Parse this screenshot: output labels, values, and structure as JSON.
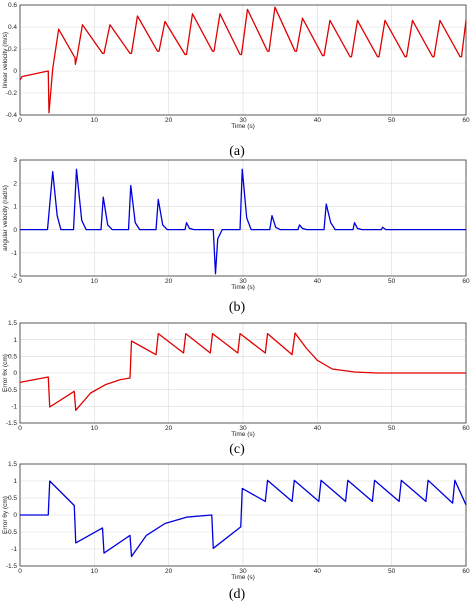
{
  "chart_data": [
    {
      "type": "line",
      "caption": "(a)",
      "xlabel": "Time (s)",
      "ylabel": "linear velocity (m/s)",
      "xlim": [
        0,
        60
      ],
      "ylim": [
        -0.4,
        0.6
      ],
      "xticks": [
        "0",
        "10",
        "20",
        "30",
        "40",
        "50",
        "60"
      ],
      "yticks": [
        "-0.4",
        "-0.2",
        "0",
        "0.2",
        "0.4",
        "0.6"
      ],
      "grid": true,
      "color": "#e00000",
      "series": [
        {
          "x": [
            0,
            0.3,
            3.8,
            3.9,
            4.4,
            5.2,
            7.4,
            7.45,
            7.7,
            8.4,
            11.1,
            11.3,
            12.1,
            14.8,
            15.0,
            15.8,
            18.5,
            18.7,
            19.5,
            22.2,
            22.4,
            23.2,
            25.9,
            26.1,
            26.9,
            29.6,
            29.8,
            30.6,
            33.3,
            33.5,
            34.3,
            37.0,
            37.2,
            38.0,
            40.7,
            40.9,
            41.7,
            44.4,
            44.6,
            45.4,
            48.1,
            48.3,
            49.1,
            51.8,
            52.0,
            52.8,
            55.5,
            55.7,
            56.5,
            59.2,
            59.4,
            60.2
          ],
          "y": [
            -0.08,
            -0.05,
            0.0,
            -0.38,
            0.02,
            0.38,
            0.12,
            0.06,
            0.14,
            0.42,
            0.16,
            0.16,
            0.42,
            0.16,
            0.16,
            0.5,
            0.18,
            0.18,
            0.45,
            0.15,
            0.15,
            0.52,
            0.18,
            0.18,
            0.52,
            0.15,
            0.15,
            0.56,
            0.18,
            0.18,
            0.58,
            0.18,
            0.18,
            0.48,
            0.14,
            0.14,
            0.46,
            0.13,
            0.13,
            0.46,
            0.13,
            0.13,
            0.46,
            0.13,
            0.13,
            0.46,
            0.13,
            0.13,
            0.46,
            0.13,
            0.13,
            0.46
          ]
        }
      ]
    },
    {
      "type": "line",
      "caption": "(b)",
      "xlabel": "Time (s)",
      "ylabel": "angular velocity (rad/s)",
      "xlim": [
        0,
        60
      ],
      "ylim": [
        -2,
        3
      ],
      "xticks": [
        "0",
        "10",
        "20",
        "30",
        "40",
        "50",
        "60"
      ],
      "yticks": [
        "-2",
        "-1",
        "0",
        "1",
        "2",
        "3"
      ],
      "grid": true,
      "color": "#0000dd",
      "series": [
        {
          "x": [
            0,
            3.7,
            4.4,
            5.0,
            5.5,
            7.2,
            7.6,
            8.3,
            8.9,
            10.9,
            11.2,
            11.8,
            12.4,
            14.6,
            14.9,
            15.5,
            16.1,
            18.3,
            18.6,
            19.2,
            19.8,
            22.2,
            22.4,
            22.8,
            23.4,
            26.0,
            26.3,
            26.6,
            27.2,
            29.6,
            29.9,
            30.5,
            31.1,
            33.6,
            33.9,
            34.4,
            35.0,
            37.4,
            37.6,
            38.0,
            38.6,
            40.9,
            41.2,
            41.8,
            42.4,
            44.8,
            45.0,
            45.4,
            46.0,
            48.6,
            48.8,
            49.2,
            60.2
          ],
          "y": [
            0,
            0,
            2.5,
            0.6,
            0,
            0,
            2.6,
            0.4,
            0,
            0,
            1.4,
            0.2,
            0,
            0,
            1.9,
            0.3,
            0,
            0,
            1.3,
            0.2,
            0,
            0,
            0.3,
            0.05,
            0,
            0,
            -1.9,
            -0.4,
            0,
            0,
            2.6,
            0.5,
            0,
            0,
            0.6,
            0.1,
            0,
            0,
            0.2,
            0.05,
            0,
            0,
            1.1,
            0.3,
            0,
            0,
            0.3,
            0.05,
            0,
            0,
            0.1,
            0,
            0
          ]
        }
      ]
    },
    {
      "type": "line",
      "caption": "(c)",
      "xlabel": "Time (s)",
      "ylabel": "Error θx (cm)",
      "xlim": [
        0,
        60
      ],
      "ylim": [
        -1.5,
        1.5
      ],
      "xticks": [
        "0",
        "10",
        "20",
        "30",
        "40",
        "50",
        "60"
      ],
      "yticks": [
        "-1.5",
        "-1",
        "-0.5",
        "0",
        "0.5",
        "1",
        "1.5"
      ],
      "grid": true,
      "color": "#e00000",
      "series": [
        {
          "x": [
            0,
            3.8,
            4.0,
            7.3,
            7.5,
            9.5,
            11.5,
            13.5,
            14.8,
            15.0,
            18.3,
            18.6,
            22.0,
            22.3,
            25.6,
            25.9,
            29.3,
            29.6,
            33.0,
            33.3,
            36.6,
            37.0,
            38.5,
            40.0,
            42.0,
            45.0,
            48.0,
            60.2
          ],
          "y": [
            -0.28,
            -0.12,
            -1.02,
            -0.55,
            -1.12,
            -0.6,
            -0.35,
            -0.2,
            -0.15,
            0.96,
            0.55,
            1.18,
            0.6,
            1.18,
            0.6,
            1.18,
            0.6,
            1.18,
            0.6,
            1.18,
            0.55,
            1.2,
            0.75,
            0.38,
            0.12,
            0.03,
            0.0,
            0.0
          ]
        }
      ]
    },
    {
      "type": "line",
      "caption": "(d)",
      "xlabel": "Time (s)",
      "ylabel": "Error θy (cm)",
      "xlim": [
        0,
        60
      ],
      "ylim": [
        -1.5,
        1.5
      ],
      "xticks": [
        "0",
        "10",
        "20",
        "30",
        "40",
        "50",
        "60"
      ],
      "yticks": [
        "-1.5",
        "-1",
        "-0.5",
        "0",
        "0.5",
        "1",
        "1.5"
      ],
      "grid": true,
      "color": "#0000dd",
      "series": [
        {
          "x": [
            0,
            3.8,
            4.0,
            7.3,
            7.5,
            11.1,
            11.3,
            14.8,
            15.0,
            17.0,
            19.5,
            22.5,
            25.8,
            26.0,
            29.7,
            29.9,
            33.0,
            33.3,
            36.6,
            36.9,
            40.2,
            40.5,
            43.8,
            44.1,
            47.4,
            47.7,
            51.0,
            51.3,
            54.6,
            54.9,
            58.2,
            58.5,
            60.2
          ],
          "y": [
            0,
            0,
            1.0,
            0.28,
            -0.82,
            -0.38,
            -1.12,
            -0.6,
            -1.22,
            -0.6,
            -0.25,
            -0.06,
            0,
            -0.98,
            -0.35,
            0.78,
            0.4,
            1.02,
            0.4,
            1.02,
            0.4,
            1.02,
            0.4,
            1.02,
            0.4,
            1.02,
            0.4,
            1.02,
            0.4,
            1.02,
            0.35,
            1.02,
            0.3
          ]
        }
      ]
    }
  ]
}
